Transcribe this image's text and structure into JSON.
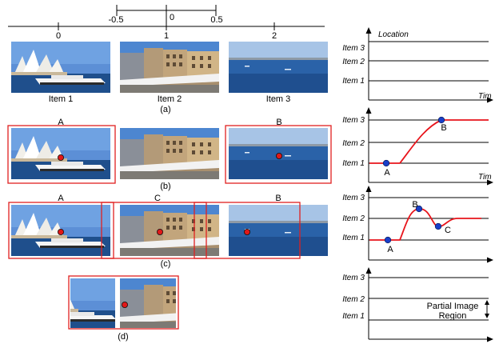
{
  "timeline": {
    "ticks": [
      "0",
      "1",
      "2"
    ],
    "window_ticks": [
      "-0.5",
      "0",
      "0.5"
    ]
  },
  "items": [
    "Item 1",
    "Item 2",
    "Item 3"
  ],
  "panel_labels": [
    "(a)",
    "(b)",
    "(c)",
    "(d)"
  ],
  "markers": {
    "A": "A",
    "B": "B",
    "C": "C"
  },
  "graph": {
    "y_label": "Location",
    "x_label": "Tim",
    "levels": [
      "Item 3",
      "Item 2",
      "Item 1"
    ],
    "annotation_line1": "Partial Image",
    "annotation_line2": "Region"
  },
  "colors": {
    "curve": "#e8141b",
    "point": "#1a3fc8",
    "frame": "#e02020",
    "red_dot": "#e01818"
  }
}
